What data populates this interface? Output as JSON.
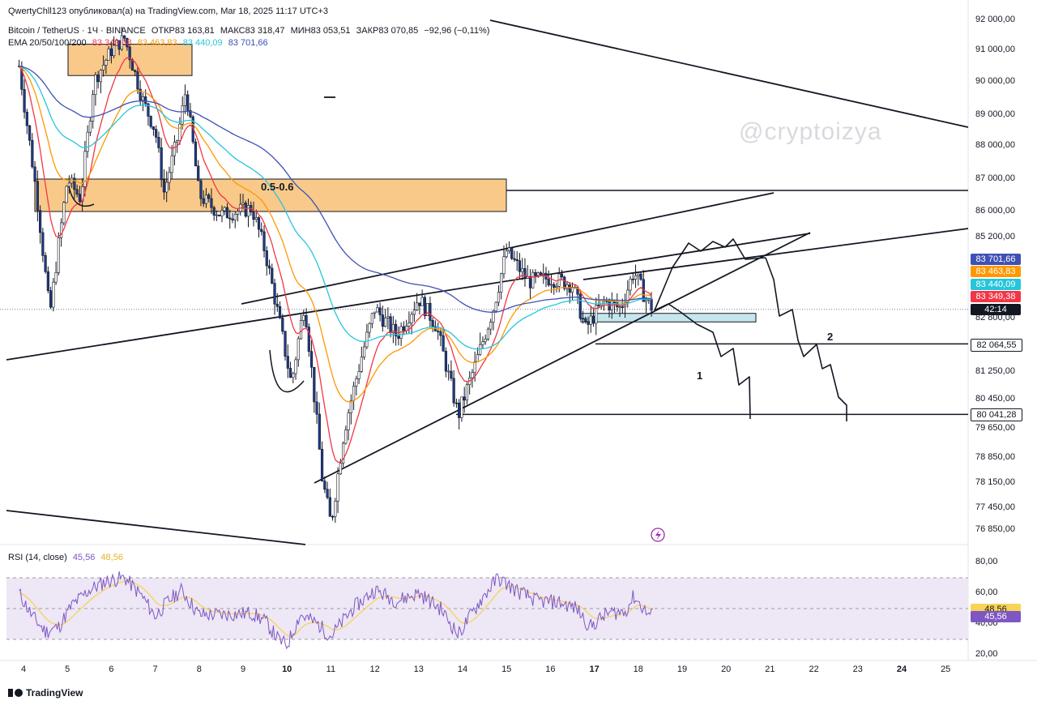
{
  "header": {
    "publish_line": "QwertyChll123 опубликовал(а) на TradingView.com, Mar 18, 2025 11:17 UTC+3",
    "symbol": "Bitcoin / TetherUS · 1Ч · BINANCE",
    "open_label": "ОТКР",
    "open_value": "83 163,81",
    "high_label": "МАКС",
    "high_value": "83 318,47",
    "low_label": "МИН",
    "low_value": "83 053,51",
    "close_label": "ЗАКР",
    "close_value": "83 070,85",
    "change": "−92,96 (−0,11%)",
    "ema_label": "EMA 20/50/100/200",
    "ema_values": [
      "83 349,38",
      "83 463,83",
      "83 440,09",
      "83 701,66"
    ]
  },
  "colors": {
    "ema20": "#f23645",
    "ema50": "#ff9800",
    "ema100": "#26c6da",
    "ema200": "#3f51b5",
    "candles": "#131722",
    "zone": "#f9c98a",
    "zone_blue": "#c6e6ee",
    "rsi_line": "#7e57c2",
    "rsi_ma": "#f7d358",
    "rsi_band": "#ede7f6"
  },
  "chart_data": [
    {
      "type": "candlestick",
      "title": "Bitcoin / TetherUS · 1Ч · BINANCE",
      "y_axis": {
        "ticks": [
          "92 000,00",
          "91 000,00",
          "90 000,00",
          "89 000,00",
          "88 000,00",
          "87 000,00",
          "86 000,00",
          "85 200,00",
          "82 800,00",
          "81 250,00",
          "80 450,00",
          "79 650,00",
          "78 850,00",
          "78 150,00",
          "77 450,00",
          "76 850,00"
        ],
        "range": [
          76500,
          92100
        ]
      },
      "x_axis": {
        "ticks": [
          "4",
          "5",
          "6",
          "7",
          "8",
          "9",
          "10",
          "11",
          "12",
          "13",
          "14",
          "15",
          "16",
          "17",
          "18",
          "19",
          "20",
          "21",
          "22",
          "23",
          "24",
          "25"
        ],
        "bold_ticks": [
          "10",
          "17",
          "24"
        ]
      },
      "price_tags": [
        {
          "label": "83 701,66",
          "value": 83701.66,
          "color": "#3f51b5"
        },
        {
          "label": "83 463,83",
          "value": 83463.83,
          "color": "#ff9800"
        },
        {
          "label": "83 440,09",
          "value": 83440.09,
          "color": "#26c6da"
        },
        {
          "label": "83 349,38",
          "value": 83349.38,
          "color": "#f23645"
        },
        {
          "label": "42:14",
          "value": 83070.85,
          "color": "#131722"
        },
        {
          "label": "82 064,55",
          "value": 82064.55,
          "color": "#ffffff"
        },
        {
          "label": "80 041,28",
          "value": 80041.28,
          "color": "#ffffff"
        }
      ],
      "price_path_approx": [
        [
          3.9,
          90500
        ],
        [
          4.3,
          86500
        ],
        [
          4.6,
          82900
        ],
        [
          4.8,
          85000
        ],
        [
          5.0,
          87000
        ],
        [
          5.3,
          86400
        ],
        [
          5.6,
          90000
        ],
        [
          6.0,
          91000
        ],
        [
          6.3,
          91400
        ],
        [
          6.7,
          89500
        ],
        [
          7.0,
          88500
        ],
        [
          7.2,
          86600
        ],
        [
          7.5,
          88200
        ],
        [
          7.7,
          89800
        ],
        [
          8.0,
          86500
        ],
        [
          8.5,
          85900
        ],
        [
          9.2,
          86100
        ],
        [
          9.5,
          84800
        ],
        [
          9.8,
          82900
        ],
        [
          10.1,
          80900
        ],
        [
          10.4,
          83300
        ],
        [
          10.8,
          78300
        ],
        [
          11.0,
          77000
        ],
        [
          11.3,
          79600
        ],
        [
          11.7,
          81700
        ],
        [
          12.0,
          83100
        ],
        [
          12.5,
          82300
        ],
        [
          13.0,
          83400
        ],
        [
          13.4,
          82600
        ],
        [
          13.9,
          80000
        ],
        [
          14.3,
          81500
        ],
        [
          14.7,
          83100
        ],
        [
          15.0,
          84800
        ],
        [
          15.5,
          83900
        ],
        [
          16.0,
          84000
        ],
        [
          16.5,
          83800
        ],
        [
          16.8,
          82500
        ],
        [
          17.2,
          83300
        ],
        [
          17.6,
          83100
        ],
        [
          17.9,
          84200
        ],
        [
          18.2,
          83300
        ],
        [
          18.35,
          83070
        ]
      ],
      "annotations": [
        "0.5-0.6",
        "1",
        "2"
      ]
    },
    {
      "type": "line",
      "title": "RSI (14, close)",
      "series": [
        {
          "name": "RSI",
          "last": "45,56"
        },
        {
          "name": "RSI MA",
          "last": "48,56"
        }
      ],
      "y_axis": {
        "ticks": [
          "80,00",
          "60,00",
          "40,00",
          "20,00"
        ],
        "range": [
          15,
          85
        ]
      },
      "rsi_path_approx": [
        [
          3.9,
          60
        ],
        [
          4.2,
          45
        ],
        [
          4.5,
          35
        ],
        [
          4.8,
          38
        ],
        [
          5.1,
          52
        ],
        [
          5.5,
          62
        ],
        [
          5.9,
          68
        ],
        [
          6.3,
          70
        ],
        [
          6.7,
          58
        ],
        [
          7.0,
          45
        ],
        [
          7.3,
          55
        ],
        [
          7.6,
          62
        ],
        [
          8.0,
          46
        ],
        [
          8.5,
          46
        ],
        [
          9.2,
          47
        ],
        [
          9.5,
          42
        ],
        [
          9.8,
          30
        ],
        [
          10.0,
          26
        ],
        [
          10.3,
          46
        ],
        [
          10.7,
          40
        ],
        [
          11.0,
          32
        ],
        [
          11.5,
          50
        ],
        [
          12.0,
          62
        ],
        [
          12.5,
          55
        ],
        [
          13.0,
          60
        ],
        [
          13.5,
          50
        ],
        [
          13.9,
          33
        ],
        [
          14.4,
          55
        ],
        [
          14.8,
          70
        ],
        [
          15.2,
          62
        ],
        [
          15.7,
          55
        ],
        [
          16.2,
          54
        ],
        [
          16.6,
          50
        ],
        [
          16.9,
          38
        ],
        [
          17.3,
          47
        ],
        [
          17.7,
          48
        ],
        [
          17.9,
          58
        ],
        [
          18.2,
          47
        ],
        [
          18.35,
          45.56
        ]
      ]
    }
  ],
  "rsi_header": {
    "label": "RSI (14, close)",
    "rsi": "45,56",
    "ma": "48,56"
  },
  "watermark": "@cryptoizya",
  "footer": {
    "brand": "TradingView"
  }
}
